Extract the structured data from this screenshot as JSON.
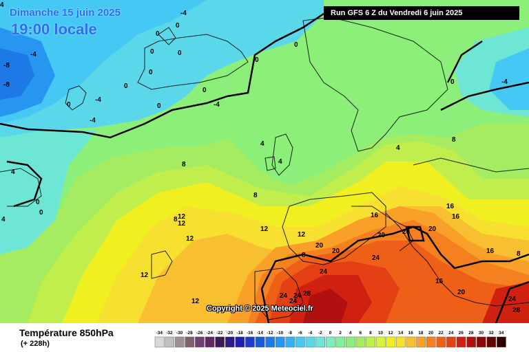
{
  "header": {
    "date": "Dimanche 15 juin 2025",
    "time": "19:00 locale",
    "run": "Run GFS 6 Z du Vendredi 6 juin 2025"
  },
  "copyright": "Copyright © 2025 Meteociel.fr",
  "footer": {
    "title": "Température 850hPa",
    "subtitle": "(+ 228h)"
  },
  "legend": {
    "values": [
      "-34",
      "-32",
      "-30",
      "-28",
      "-26",
      "-24",
      "-22",
      "-20",
      "-18",
      "-16",
      "-14",
      "-12",
      "-10",
      "-8",
      "-6",
      "-4",
      "-2",
      "0",
      "2",
      "4",
      "6",
      "8",
      "10",
      "12",
      "14",
      "16",
      "18",
      "20",
      "22",
      "24",
      "26",
      "28",
      "30",
      "32",
      "34"
    ],
    "colors": [
      "#d8d8d8",
      "#c0c0c0",
      "#a09090",
      "#806070",
      "#704070",
      "#602860",
      "#3c1a5a",
      "#2a1a8a",
      "#2020b0",
      "#1e3ccc",
      "#1a5ad8",
      "#1e78e6",
      "#2896f0",
      "#36b0f4",
      "#46c8f4",
      "#5ad8ea",
      "#6ee6d6",
      "#7ceebc",
      "#82f09a",
      "#8cef7a",
      "#a6ec60",
      "#c0ee4c",
      "#dcf23a",
      "#f0f020",
      "#f8e030",
      "#f8c030",
      "#f8a028",
      "#f48020",
      "#ee6018",
      "#e44014",
      "#d02010",
      "#b01010",
      "#8c0808",
      "#600404",
      "#300000"
    ]
  },
  "isotherm_labels": [
    "-8",
    "-8",
    "-4",
    "-4",
    "-4",
    "-4",
    "-4",
    "-4",
    "0",
    "0",
    "0",
    "0",
    "0",
    "0",
    "0",
    "0",
    "0",
    "0",
    "0",
    "0",
    "0",
    "0",
    "4",
    "4",
    "4",
    "4",
    "4",
    "4",
    "8",
    "8",
    "8",
    "8",
    "8",
    "8",
    "12",
    "12",
    "12",
    "12",
    "12",
    "12",
    "12",
    "16",
    "16",
    "16",
    "16",
    "16",
    "20",
    "20",
    "20",
    "20",
    "20",
    "20",
    "24",
    "24",
    "24",
    "24",
    "24",
    "24",
    "28",
    "28"
  ]
}
